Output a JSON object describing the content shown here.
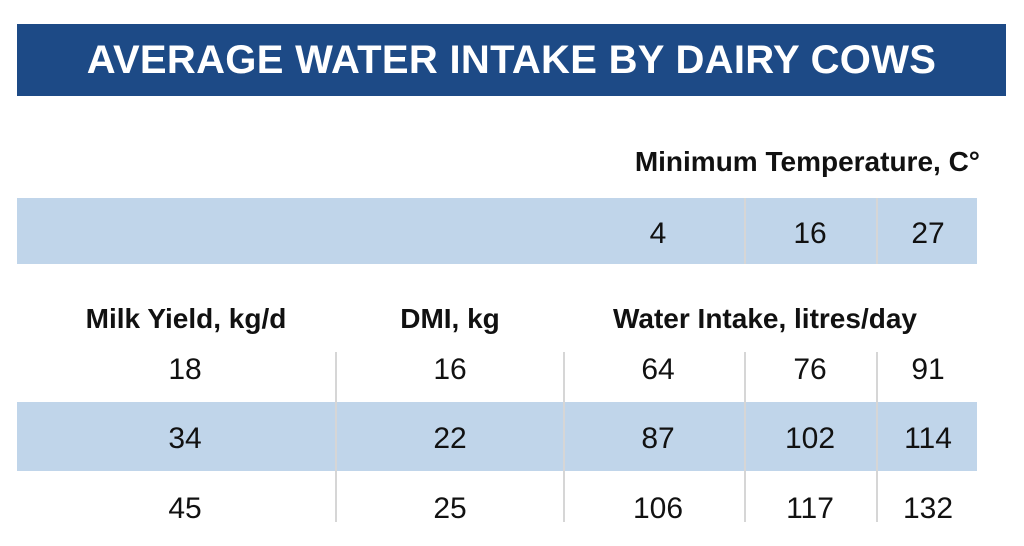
{
  "title": "AVERAGE WATER INTAKE BY DAIRY COWS",
  "temperature": {
    "heading": "Minimum Temperature, C°",
    "values": [
      "4",
      "16",
      "27"
    ]
  },
  "columns": {
    "milk_yield": "Milk Yield, kg/d",
    "dmi": "DMI, kg",
    "water_intake": "Water Intake, litres/day"
  },
  "rows": [
    {
      "milk_yield": "18",
      "dmi": "16",
      "water": [
        "64",
        "76",
        "91"
      ]
    },
    {
      "milk_yield": "34",
      "dmi": "22",
      "water": [
        "87",
        "102",
        "114"
      ]
    },
    {
      "milk_yield": "45",
      "dmi": "25",
      "water": [
        "106",
        "117",
        "132"
      ]
    }
  ],
  "colors": {
    "banner": "#1d4a86",
    "band": "#c0d5ea",
    "divider": "#d6d6d6"
  }
}
